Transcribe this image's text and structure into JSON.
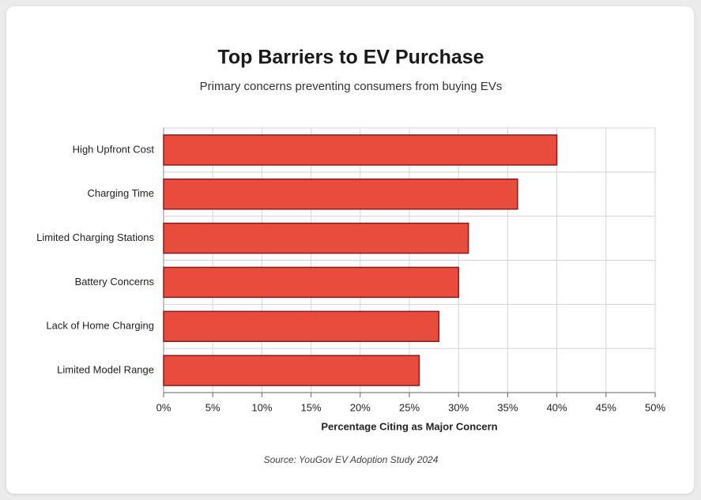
{
  "chart_data": {
    "type": "bar",
    "orientation": "horizontal",
    "title": "Top Barriers to EV Purchase",
    "subtitle": "Primary concerns preventing consumers from buying EVs",
    "categories": [
      "High Upfront Cost",
      "Charging Time",
      "Limited Charging Stations",
      "Battery Concerns",
      "Lack of Home Charging",
      "Limited Model Range"
    ],
    "values": [
      40,
      36,
      31,
      30,
      28,
      26
    ],
    "color": "#e74c3c",
    "edge_color": "#8b1a1a",
    "xlabel": "Percentage Citing as Major Concern",
    "source": "Source: YouGov EV Adoption Study 2024",
    "xlim": [
      0,
      50
    ],
    "xticks": [
      {
        "value": 0,
        "label": "0%"
      },
      {
        "value": 5,
        "label": "5%"
      },
      {
        "value": 10,
        "label": "10%"
      },
      {
        "value": 15,
        "label": "15%"
      },
      {
        "value": 20,
        "label": "20%"
      },
      {
        "value": 25,
        "label": "25%"
      },
      {
        "value": 30,
        "label": "30%"
      },
      {
        "value": 35,
        "label": "35%"
      },
      {
        "value": 40,
        "label": "40%"
      },
      {
        "value": 45,
        "label": "45%"
      },
      {
        "value": 50,
        "label": "50%"
      }
    ],
    "grid": true
  }
}
